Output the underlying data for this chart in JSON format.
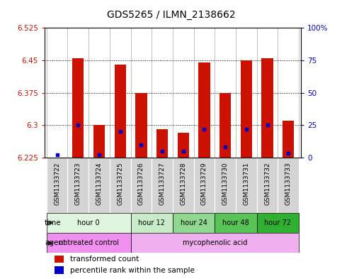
{
  "title": "GDS5265 / ILMN_2138662",
  "samples": [
    "GSM1133722",
    "GSM1133723",
    "GSM1133724",
    "GSM1133725",
    "GSM1133726",
    "GSM1133727",
    "GSM1133728",
    "GSM1133729",
    "GSM1133730",
    "GSM1133731",
    "GSM1133732",
    "GSM1133733"
  ],
  "red_values": [
    6.225,
    6.455,
    6.3,
    6.44,
    6.375,
    6.29,
    6.283,
    6.445,
    6.375,
    6.45,
    6.455,
    6.31
  ],
  "blue_values": [
    2,
    25,
    2,
    20,
    10,
    5,
    5,
    22,
    8,
    22,
    25,
    3
  ],
  "ylim_left": [
    6.225,
    6.525
  ],
  "ylim_right": [
    0,
    100
  ],
  "yticks_left": [
    6.225,
    6.3,
    6.375,
    6.45,
    6.525
  ],
  "yticks_right": [
    0,
    25,
    50,
    75,
    100
  ],
  "ytick_labels_left": [
    "6.225",
    "6.3",
    "6.375",
    "6.45",
    "6.525"
  ],
  "ytick_labels_right": [
    "0",
    "25",
    "50",
    "75",
    "100%"
  ],
  "base_value": 6.225,
  "time_groups": [
    {
      "label": "hour 0",
      "start": 0,
      "end": 4,
      "color": "#e0f5e0"
    },
    {
      "label": "hour 12",
      "start": 4,
      "end": 6,
      "color": "#c8ecc8"
    },
    {
      "label": "hour 24",
      "start": 6,
      "end": 8,
      "color": "#90d890"
    },
    {
      "label": "hour 48",
      "start": 8,
      "end": 10,
      "color": "#58c458"
    },
    {
      "label": "hour 72",
      "start": 10,
      "end": 12,
      "color": "#30b030"
    }
  ],
  "agent_untreated": {
    "label": "untreated control",
    "start": 0,
    "end": 4,
    "color": "#f090f0"
  },
  "agent_myco": {
    "label": "mycophenolic acid",
    "start": 4,
    "end": 12,
    "color": "#f0b0f0"
  },
  "bar_color": "#cc1100",
  "dot_color": "#0000cc",
  "background_color": "#ffffff",
  "grid_color": "#000000",
  "label_color_left": "#cc1100",
  "label_color_right": "#0000bb",
  "bar_width": 0.55,
  "title_fontsize": 10,
  "tick_fontsize": 7.5,
  "sample_fontsize": 6.5
}
